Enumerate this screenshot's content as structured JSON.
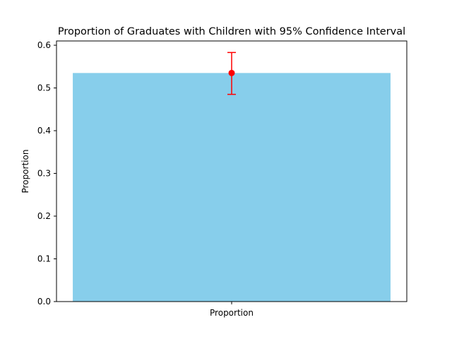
{
  "chart_data": {
    "type": "bar",
    "title": "Proportion of Graduates with Children with 95% Confidence Interval",
    "xlabel": "",
    "ylabel": "Proportion",
    "categories": [
      "Proportion"
    ],
    "values": [
      0.535
    ],
    "error": {
      "lower": [
        0.485
      ],
      "upper": [
        0.583
      ]
    },
    "ylim": [
      0,
      0.61
    ],
    "yticks": [
      "0.0",
      "0.1",
      "0.2",
      "0.3",
      "0.4",
      "0.5",
      "0.6"
    ],
    "grid": false,
    "colors": {
      "bar": "#87ceeb",
      "error": "#ff0000",
      "axis": "#000000"
    }
  }
}
